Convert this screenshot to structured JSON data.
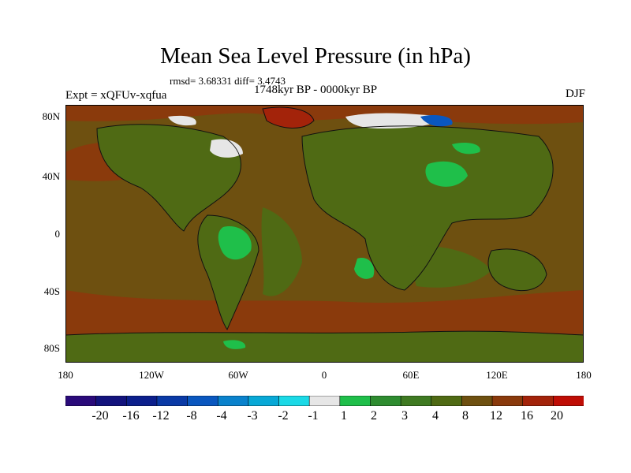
{
  "title": "Mean Sea Level Pressure (in hPa)",
  "stats": "rmsd= 3.68331  diff= 3.4743",
  "period": "1748kyr BP - 0000kyr BP",
  "experiment": "Expt = xQFUv-xqfua",
  "season": "DJF",
  "lat_labels": [
    "80N",
    "40N",
    "0",
    "40S",
    "80S"
  ],
  "lon_labels": [
    "180",
    "120W",
    "60W",
    "0",
    "60E",
    "120E",
    "180"
  ],
  "colorbar": {
    "labels": [
      "-20",
      "-16",
      "-12",
      "-8",
      "-4",
      "-3",
      "-2",
      "-1",
      "1",
      "2",
      "3",
      "4",
      "8",
      "12",
      "16",
      "20"
    ],
    "colors": [
      "#2a0a7a",
      "#13137d",
      "#0c1f8c",
      "#0a3aa6",
      "#0a57bf",
      "#0a82cc",
      "#08a8d6",
      "#1bd9e6",
      "#e6e6e6",
      "#1fbf4a",
      "#2e8c30",
      "#3f7a22",
      "#4f6a14",
      "#6e5010",
      "#8a3a0c",
      "#a3230a",
      "#bf0d05"
    ]
  },
  "fields": {
    "ocean": "#6e5010",
    "ocean_warm": "#8a3a0c",
    "land": "#4f6a14",
    "land_green": "#3f7a22",
    "bright_green": "#1fbf4a",
    "arctic_red": "#a3230a",
    "coast": "#111111",
    "white": "#e6e6e6",
    "blue_low": "#0a57bf"
  }
}
